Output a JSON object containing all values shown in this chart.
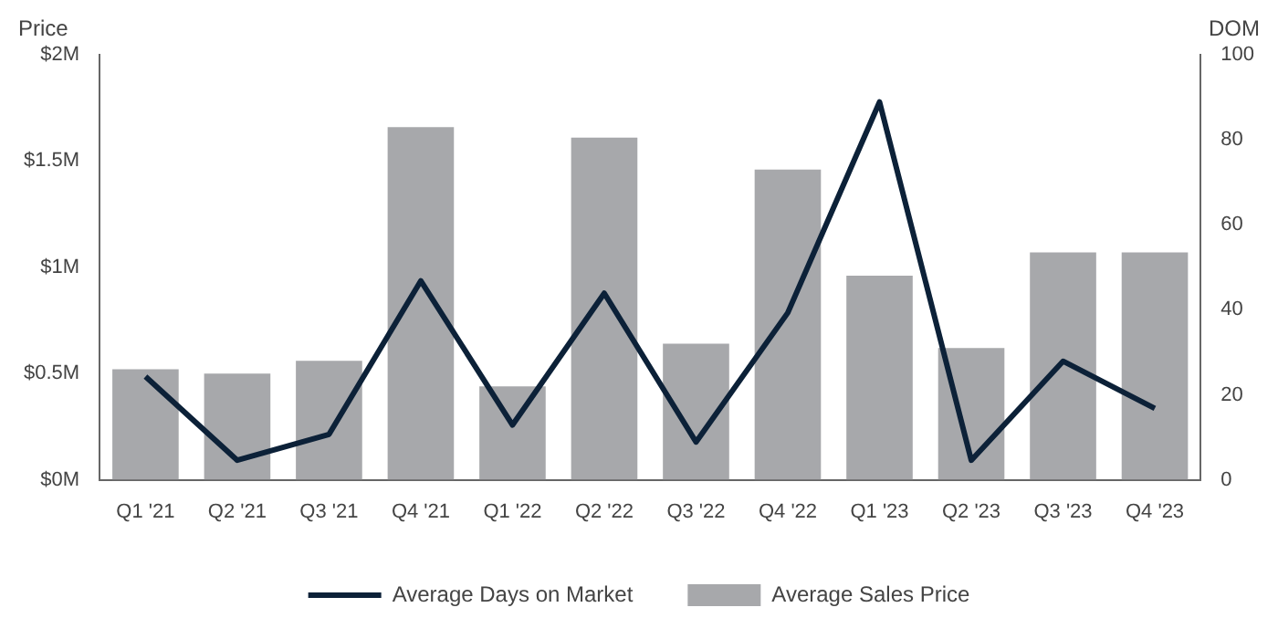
{
  "chart_data": {
    "type": "bar",
    "ylabel": "Price",
    "y2label": "DOM",
    "categories": [
      "Q1 '21",
      "Q2 '21",
      "Q3 '21",
      "Q4 '21",
      "Q1 '22",
      "Q2 '22",
      "Q3 '22",
      "Q4 '22",
      "Q1 '23",
      "Q2 '23",
      "Q3 '23",
      "Q4 '23"
    ],
    "series": [
      {
        "name": "Average Days on Market",
        "type": "line",
        "axis": "y2",
        "color": "#0c2138",
        "values": [
          24.3,
          4.6,
          10.7,
          46.8,
          12.9,
          43.9,
          8.9,
          39.3,
          88.9,
          4.6,
          27.9,
          16.8
        ]
      },
      {
        "name": "Average Sales Price",
        "color": "#a7a8ab",
        "values": [
          0.52,
          0.5,
          0.56,
          1.66,
          0.44,
          1.61,
          0.64,
          1.46,
          0.96,
          0.62,
          1.07,
          1.07
        ]
      }
    ],
    "ylim": [
      0,
      2
    ],
    "yticks": [
      {
        "value": 0,
        "label": "$0M"
      },
      {
        "value": 0.5,
        "label": "$0.5M"
      },
      {
        "value": 1,
        "label": "$1M"
      },
      {
        "value": 1.5,
        "label": "$1.5M"
      },
      {
        "value": 2,
        "label": "$2M"
      }
    ],
    "y2lim": [
      0,
      100
    ],
    "y2ticks": [
      0,
      20,
      40,
      60,
      80,
      100
    ],
    "legend": "bottom",
    "grid": false,
    "marker": "none",
    "line_style": "solid"
  }
}
